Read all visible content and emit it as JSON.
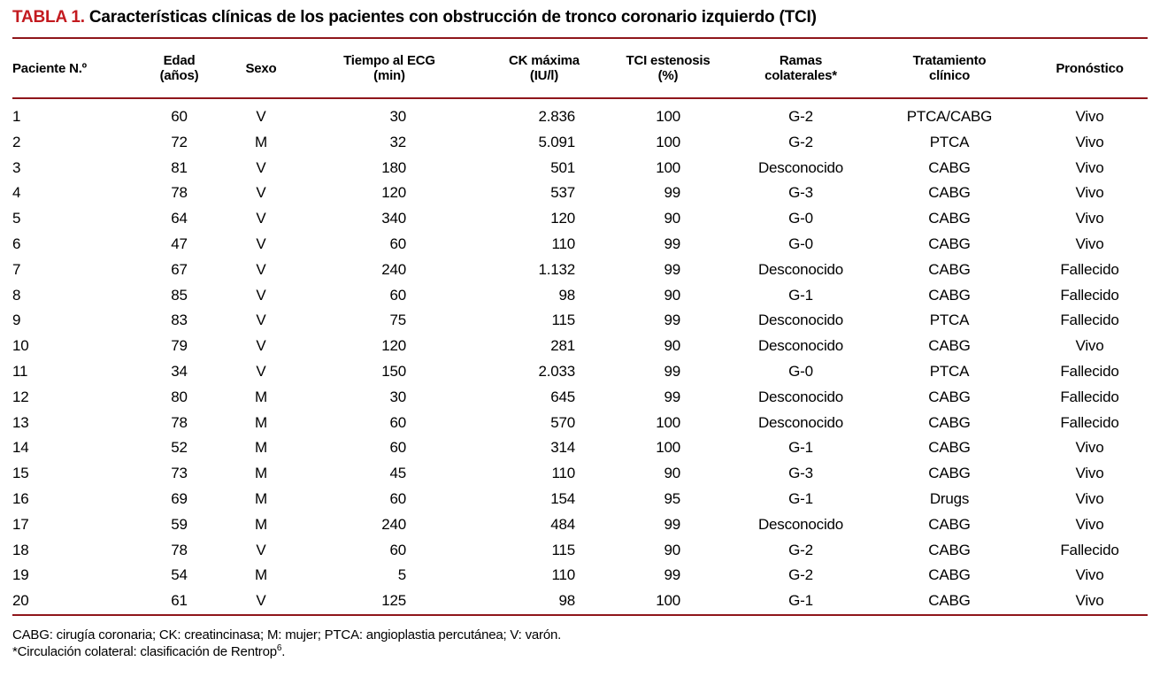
{
  "title": {
    "label": "TABLA 1.",
    "text": "Características clínicas de los pacientes con obstrucción de tronco coronario izquierdo (TCI)"
  },
  "colors": {
    "accent_red": "#c31a1f",
    "rule_red": "#8f161b"
  },
  "table": {
    "columns": [
      {
        "id": "paciente",
        "line1": "Paciente N.º",
        "line2": ""
      },
      {
        "id": "edad",
        "line1": "Edad",
        "line2": "(años)"
      },
      {
        "id": "sexo",
        "line1": "Sexo",
        "line2": ""
      },
      {
        "id": "tiempo_ecg",
        "line1": "Tiempo al ECG",
        "line2": "(min)"
      },
      {
        "id": "ck_maxima",
        "line1": "CK máxima",
        "line2": "(IU/l)"
      },
      {
        "id": "tci_estenosis",
        "line1": "TCI estenosis",
        "line2": "(%)"
      },
      {
        "id": "ramas",
        "line1": "Ramas",
        "line2": "colaterales*"
      },
      {
        "id": "tratamiento",
        "line1": "Tratamiento",
        "line2": "clínico"
      },
      {
        "id": "pronostico",
        "line1": "Pronóstico",
        "line2": ""
      }
    ],
    "rows": [
      [
        "1",
        "60",
        "V",
        "30",
        "2.836",
        "100",
        "G-2",
        "PTCA/CABG",
        "Vivo"
      ],
      [
        "2",
        "72",
        "M",
        "32",
        "5.091",
        "100",
        "G-2",
        "PTCA",
        "Vivo"
      ],
      [
        "3",
        "81",
        "V",
        "180",
        "501",
        "100",
        "Desconocido",
        "CABG",
        "Vivo"
      ],
      [
        "4",
        "78",
        "V",
        "120",
        "537",
        "99",
        "G-3",
        "CABG",
        "Vivo"
      ],
      [
        "5",
        "64",
        "V",
        "340",
        "120",
        "90",
        "G-0",
        "CABG",
        "Vivo"
      ],
      [
        "6",
        "47",
        "V",
        "60",
        "110",
        "99",
        "G-0",
        "CABG",
        "Vivo"
      ],
      [
        "7",
        "67",
        "V",
        "240",
        "1.132",
        "99",
        "Desconocido",
        "CABG",
        "Fallecido"
      ],
      [
        "8",
        "85",
        "V",
        "60",
        "98",
        "90",
        "G-1",
        "CABG",
        "Fallecido"
      ],
      [
        "9",
        "83",
        "V",
        "75",
        "115",
        "99",
        "Desconocido",
        "PTCA",
        "Fallecido"
      ],
      [
        "10",
        "79",
        "V",
        "120",
        "281",
        "90",
        "Desconocido",
        "CABG",
        "Vivo"
      ],
      [
        "11",
        "34",
        "V",
        "150",
        "2.033",
        "99",
        "G-0",
        "PTCA",
        "Fallecido"
      ],
      [
        "12",
        "80",
        "M",
        "30",
        "645",
        "99",
        "Desconocido",
        "CABG",
        "Fallecido"
      ],
      [
        "13",
        "78",
        "M",
        "60",
        "570",
        "100",
        "Desconocido",
        "CABG",
        "Fallecido"
      ],
      [
        "14",
        "52",
        "M",
        "60",
        "314",
        "100",
        "G-1",
        "CABG",
        "Vivo"
      ],
      [
        "15",
        "73",
        "M",
        "45",
        "110",
        "90",
        "G-3",
        "CABG",
        "Vivo"
      ],
      [
        "16",
        "69",
        "M",
        "60",
        "154",
        "95",
        "G-1",
        "Drugs",
        "Vivo"
      ],
      [
        "17",
        "59",
        "M",
        "240",
        "484",
        "99",
        "Desconocido",
        "CABG",
        "Vivo"
      ],
      [
        "18",
        "78",
        "V",
        "60",
        "115",
        "90",
        "G-2",
        "CABG",
        "Fallecido"
      ],
      [
        "19",
        "54",
        "M",
        "5",
        "110",
        "99",
        "G-2",
        "CABG",
        "Vivo"
      ],
      [
        "20",
        "61",
        "V",
        "125",
        "98",
        "100",
        "G-1",
        "CABG",
        "Vivo"
      ]
    ]
  },
  "footnotes": {
    "abbreviations": "CABG: cirugía coronaria; CK: creatincinasa; M: mujer; PTCA: angioplastia percutánea; V: varón.",
    "collateral": {
      "text": "*Circulación colateral: clasificación de Rentrop",
      "sup": "6",
      "after": "."
    }
  }
}
